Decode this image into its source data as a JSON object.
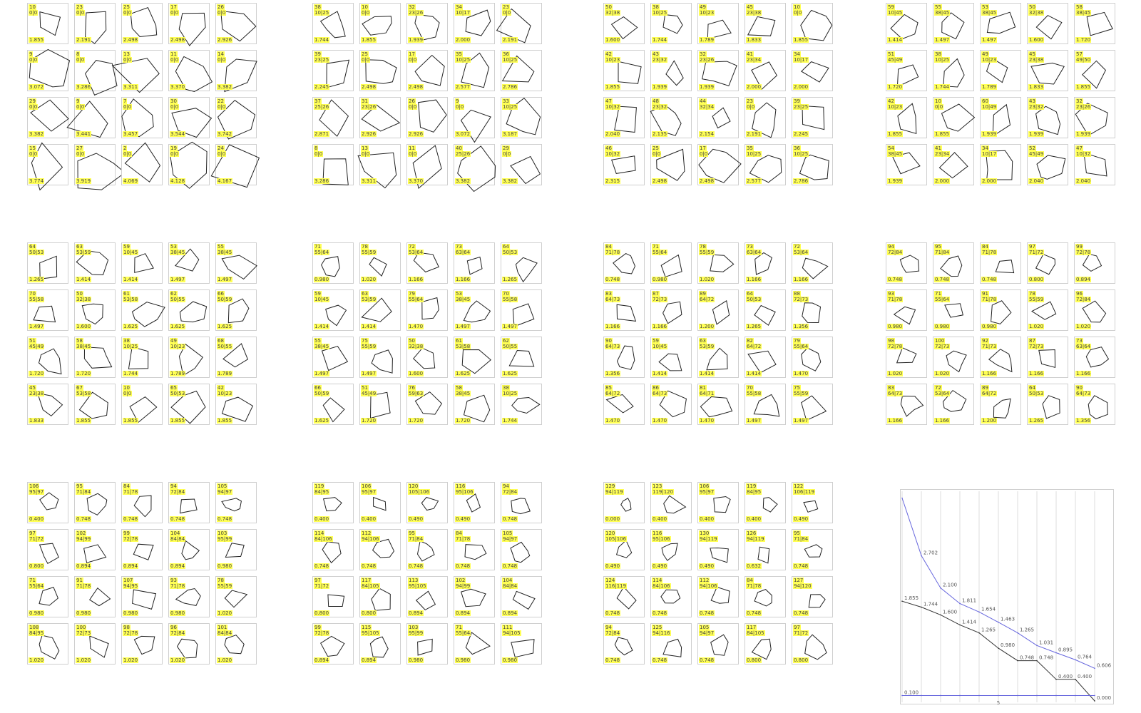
{
  "colors": {
    "label_bg": "#ffff55",
    "cell_border": "#cfcfcf",
    "shape_stroke": "#222222",
    "series_blue": "#6666dd",
    "series_black": "#333333",
    "grid": "#dddddd"
  },
  "groups": [
    {
      "cells": [
        [
          "10",
          "0|0",
          "1.855"
        ],
        [
          "23",
          "0|0",
          "2.191"
        ],
        [
          "25",
          "0|0",
          "2.498"
        ],
        [
          "17",
          "0|0",
          "2.498"
        ],
        [
          "26",
          "0|0",
          "2.926"
        ],
        [
          "9",
          "0|0",
          "3.072"
        ],
        [
          "8",
          "0|0",
          "3.286"
        ],
        [
          "13",
          "0|0",
          "3.311"
        ],
        [
          "11",
          "0|0",
          "3.370"
        ],
        [
          "14",
          "0|0",
          "3.382"
        ],
        [
          "29",
          "0|0",
          "3.382"
        ],
        [
          "9",
          "0|0",
          "3.441"
        ],
        [
          "7",
          "0|0",
          "3.457"
        ],
        [
          "30",
          "0|0",
          "3.544"
        ],
        [
          "22",
          "0|0",
          "3.742"
        ],
        [
          "15",
          "0|0",
          "3.774"
        ],
        [
          "27",
          "0|0",
          "3.919"
        ],
        [
          "2",
          "0|0",
          "4.069"
        ],
        [
          "19",
          "0|0",
          "4.128"
        ],
        [
          "24",
          "0|0",
          "4.167"
        ]
      ]
    },
    {
      "cells": [
        [
          "38",
          "10|25",
          "1.744"
        ],
        [
          "10",
          "0|0",
          "1.855"
        ],
        [
          "32",
          "23|26",
          "1.939"
        ],
        [
          "34",
          "10|17",
          "2.000"
        ],
        [
          "23",
          "0|0",
          "2.191"
        ],
        [
          "39",
          "23|25",
          "2.245"
        ],
        [
          "25",
          "0|0",
          "2.498"
        ],
        [
          "17",
          "0|0",
          "2.498"
        ],
        [
          "35",
          "10|25",
          "2.577"
        ],
        [
          "36",
          "10|25",
          "2.786"
        ],
        [
          "37",
          "25|26",
          "2.871"
        ],
        [
          "31",
          "23|26",
          "2.926"
        ],
        [
          "26",
          "0|0",
          "2.926"
        ],
        [
          "9",
          "0|0",
          "3.072"
        ],
        [
          "33",
          "10|25",
          "3.187"
        ],
        [
          "8",
          "0|0",
          "3.286"
        ],
        [
          "13",
          "0|0",
          "3.311"
        ],
        [
          "11",
          "0|0",
          "3.370"
        ],
        [
          "40",
          "25|26",
          "3.382"
        ],
        [
          "29",
          "0|0",
          "3.382"
        ]
      ]
    },
    {
      "cells": [
        [
          "50",
          "32|38",
          "1.600"
        ],
        [
          "38",
          "10|25",
          "1.744"
        ],
        [
          "49",
          "10|23",
          "1.789"
        ],
        [
          "45",
          "23|38",
          "1.833"
        ],
        [
          "10",
          "0|0",
          "1.855"
        ],
        [
          "42",
          "10|23",
          "1.855"
        ],
        [
          "43",
          "23|32",
          "1.939"
        ],
        [
          "32",
          "23|26",
          "1.939"
        ],
        [
          "41",
          "23|34",
          "2.000"
        ],
        [
          "34",
          "10|17",
          "2.000"
        ],
        [
          "47",
          "10|32",
          "2.040"
        ],
        [
          "48",
          "23|32",
          "2.135"
        ],
        [
          "44",
          "32|34",
          "2.154"
        ],
        [
          "23",
          "0|0",
          "2.191"
        ],
        [
          "39",
          "23|25",
          "2.245"
        ],
        [
          "46",
          "10|32",
          "2.315"
        ],
        [
          "25",
          "0|0",
          "2.498"
        ],
        [
          "17",
          "0|0",
          "2.498"
        ],
        [
          "35",
          "10|25",
          "2.577"
        ],
        [
          "36",
          "10|25",
          "2.786"
        ]
      ]
    },
    {
      "cells": [
        [
          "59",
          "10|45",
          "1.414"
        ],
        [
          "55",
          "38|45",
          "1.497"
        ],
        [
          "53",
          "38|45",
          "1.497"
        ],
        [
          "50",
          "32|38",
          "1.600"
        ],
        [
          "58",
          "38|45",
          "1.720"
        ],
        [
          "51",
          "45|49",
          "1.720"
        ],
        [
          "38",
          "10|25",
          "1.744"
        ],
        [
          "49",
          "10|23",
          "1.789"
        ],
        [
          "45",
          "23|38",
          "1.833"
        ],
        [
          "57",
          "49|50",
          "1.855"
        ],
        [
          "42",
          "10|23",
          "1.855"
        ],
        [
          "10",
          "0|0",
          "1.855"
        ],
        [
          "60",
          "10|49",
          "1.939"
        ],
        [
          "43",
          "23|32",
          "1.939"
        ],
        [
          "32",
          "23|26",
          "1.939"
        ],
        [
          "54",
          "38|45",
          "1.939"
        ],
        [
          "41",
          "23|34",
          "2.000"
        ],
        [
          "34",
          "10|17",
          "2.000"
        ],
        [
          "52",
          "45|49",
          "2.040"
        ],
        [
          "47",
          "10|32",
          "2.040"
        ]
      ]
    },
    {
      "cells": [
        [
          "64",
          "50|53",
          "1.265"
        ],
        [
          "63",
          "53|59",
          "1.414"
        ],
        [
          "59",
          "10|45",
          "1.414"
        ],
        [
          "53",
          "38|45",
          "1.497"
        ],
        [
          "55",
          "38|45",
          "1.497"
        ],
        [
          "70",
          "55|58",
          "1.497"
        ],
        [
          "50",
          "32|38",
          "1.600"
        ],
        [
          "61",
          "53|58",
          "1.625"
        ],
        [
          "62",
          "50|55",
          "1.625"
        ],
        [
          "66",
          "50|59",
          "1.625"
        ],
        [
          "51",
          "45|49",
          "1.720"
        ],
        [
          "58",
          "38|45",
          "1.720"
        ],
        [
          "38",
          "10|25",
          "1.744"
        ],
        [
          "49",
          "10|23",
          "1.789"
        ],
        [
          "68",
          "50|55",
          "1.789"
        ],
        [
          "45",
          "23|38",
          "1.833"
        ],
        [
          "67",
          "53|58",
          "1.855"
        ],
        [
          "10",
          "0|0",
          "1.855"
        ],
        [
          "65",
          "50|53",
          "1.855"
        ],
        [
          "42",
          "10|23",
          "1.855"
        ]
      ]
    },
    {
      "cells": [
        [
          "71",
          "55|64",
          "0.980"
        ],
        [
          "78",
          "55|59",
          "1.020"
        ],
        [
          "72",
          "53|64",
          "1.166"
        ],
        [
          "73",
          "63|64",
          "1.166"
        ],
        [
          "64",
          "50|53",
          "1.265"
        ],
        [
          "59",
          "10|45",
          "1.414"
        ],
        [
          "63",
          "53|59",
          "1.414"
        ],
        [
          "79",
          "55|64",
          "1.470"
        ],
        [
          "53",
          "38|45",
          "1.497"
        ],
        [
          "70",
          "55|58",
          "1.497"
        ],
        [
          "55",
          "38|45",
          "1.497"
        ],
        [
          "75",
          "55|59",
          "1.497"
        ],
        [
          "50",
          "32|38",
          "1.600"
        ],
        [
          "61",
          "53|58",
          "1.625"
        ],
        [
          "62",
          "50|55",
          "1.625"
        ],
        [
          "66",
          "50|59",
          "1.625"
        ],
        [
          "51",
          "45|49",
          "1.720"
        ],
        [
          "76",
          "59|63",
          "1.720"
        ],
        [
          "58",
          "38|45",
          "1.720"
        ],
        [
          "38",
          "10|25",
          "1.744"
        ]
      ]
    },
    {
      "cells": [
        [
          "84",
          "71|78",
          "0.748"
        ],
        [
          "71",
          "55|64",
          "0.980"
        ],
        [
          "78",
          "55|59",
          "1.020"
        ],
        [
          "73",
          "63|64",
          "1.166"
        ],
        [
          "72",
          "53|64",
          "1.166"
        ],
        [
          "83",
          "64|73",
          "1.166"
        ],
        [
          "87",
          "72|73",
          "1.166"
        ],
        [
          "89",
          "64|72",
          "1.200"
        ],
        [
          "64",
          "50|53",
          "1.265"
        ],
        [
          "88",
          "72|73",
          "1.356"
        ],
        [
          "90",
          "64|73",
          "1.356"
        ],
        [
          "59",
          "10|45",
          "1.414"
        ],
        [
          "63",
          "53|59",
          "1.414"
        ],
        [
          "82",
          "64|72",
          "1.414"
        ],
        [
          "79",
          "55|64",
          "1.470"
        ],
        [
          "85",
          "64|72",
          "1.470"
        ],
        [
          "86",
          "64|73",
          "1.470"
        ],
        [
          "81",
          "64|71",
          "1.470"
        ],
        [
          "70",
          "55|58",
          "1.497"
        ],
        [
          "75",
          "55|59",
          "1.497"
        ]
      ]
    },
    {
      "cells": [
        [
          "94",
          "72|84",
          "0.748"
        ],
        [
          "95",
          "71|84",
          "0.748"
        ],
        [
          "84",
          "71|78",
          "0.748"
        ],
        [
          "97",
          "71|72",
          "0.800"
        ],
        [
          "99",
          "72|78",
          "0.894"
        ],
        [
          "93",
          "71|78",
          "0.980"
        ],
        [
          "71",
          "55|64",
          "0.980"
        ],
        [
          "91",
          "71|78",
          "0.980"
        ],
        [
          "78",
          "55|59",
          "1.020"
        ],
        [
          "96",
          "72|84",
          "1.020"
        ],
        [
          "98",
          "72|78",
          "1.020"
        ],
        [
          "100",
          "72|73",
          "1.020"
        ],
        [
          "92",
          "71|73",
          "1.166"
        ],
        [
          "87",
          "72|73",
          "1.166"
        ],
        [
          "73",
          "63|64",
          "1.166"
        ],
        [
          "83",
          "64|73",
          "1.166"
        ],
        [
          "72",
          "53|64",
          "1.166"
        ],
        [
          "89",
          "64|72",
          "1.200"
        ],
        [
          "64",
          "50|53",
          "1.265"
        ],
        [
          "90",
          "64|73",
          "1.356"
        ]
      ]
    },
    {
      "cells": [
        [
          "106",
          "95|97",
          "0.400"
        ],
        [
          "95",
          "71|84",
          "0.748"
        ],
        [
          "84",
          "71|78",
          "0.748"
        ],
        [
          "94",
          "72|84",
          "0.748"
        ],
        [
          "105",
          "94|97",
          "0.748"
        ],
        [
          "97",
          "71|72",
          "0.800"
        ],
        [
          "102",
          "94|99",
          "0.894"
        ],
        [
          "99",
          "72|78",
          "0.894"
        ],
        [
          "104",
          "84|84",
          "0.894"
        ],
        [
          "103",
          "95|99",
          "0.980"
        ],
        [
          "71",
          "55|64",
          "0.980"
        ],
        [
          "91",
          "71|78",
          "0.980"
        ],
        [
          "107",
          "94|95",
          "0.980"
        ],
        [
          "93",
          "71|78",
          "0.980"
        ],
        [
          "78",
          "55|59",
          "1.020"
        ],
        [
          "108",
          "84|95",
          "1.020"
        ],
        [
          "100",
          "72|73",
          "1.020"
        ],
        [
          "98",
          "72|78",
          "1.020"
        ],
        [
          "96",
          "72|84",
          "1.020"
        ],
        [
          "101",
          "84|84",
          "1.020"
        ]
      ]
    },
    {
      "cells": [
        [
          "119",
          "84|95",
          "0.400"
        ],
        [
          "106",
          "95|97",
          "0.400"
        ],
        [
          "120",
          "105|106",
          "0.490"
        ],
        [
          "116",
          "95|106",
          "0.490"
        ],
        [
          "94",
          "72|84",
          "0.748"
        ],
        [
          "114",
          "84|106",
          "0.748"
        ],
        [
          "112",
          "94|106",
          "0.748"
        ],
        [
          "95",
          "71|84",
          "0.748"
        ],
        [
          "84",
          "71|78",
          "0.748"
        ],
        [
          "105",
          "94|97",
          "0.748"
        ],
        [
          "97",
          "71|72",
          "0.800"
        ],
        [
          "117",
          "84|105",
          "0.800"
        ],
        [
          "113",
          "95|105",
          "0.894"
        ],
        [
          "102",
          "94|99",
          "0.894"
        ],
        [
          "104",
          "84|84",
          "0.894"
        ],
        [
          "99",
          "72|78",
          "0.894"
        ],
        [
          "115",
          "95|105",
          "0.894"
        ],
        [
          "103",
          "95|99",
          "0.980"
        ],
        [
          "71",
          "55|64",
          "0.980"
        ],
        [
          "111",
          "94|105",
          "0.980"
        ]
      ]
    },
    {
      "cells": [
        [
          "129",
          "94|119",
          "0.000"
        ],
        [
          "123",
          "119|120",
          "0.400"
        ],
        [
          "106",
          "95|97",
          "0.400"
        ],
        [
          "119",
          "84|95",
          "0.400"
        ],
        [
          "122",
          "106|119",
          "0.490"
        ],
        [
          "120",
          "105|106",
          "0.490"
        ],
        [
          "116",
          "95|106",
          "0.490"
        ],
        [
          "130",
          "94|119",
          "0.490"
        ],
        [
          "126",
          "94|119",
          "0.632"
        ],
        [
          "95",
          "71|84",
          "0.748"
        ],
        [
          "124",
          "116|119",
          "0.748"
        ],
        [
          "114",
          "84|106",
          "0.748"
        ],
        [
          "112",
          "94|106",
          "0.748"
        ],
        [
          "84",
          "71|78",
          "0.748"
        ],
        [
          "127",
          "94|120",
          "0.748"
        ],
        [
          "94",
          "72|84",
          "0.748"
        ],
        [
          "125",
          "94|116",
          "0.748"
        ],
        [
          "105",
          "94|97",
          "0.748"
        ],
        [
          "117",
          "84|105",
          "0.800"
        ],
        [
          "97",
          "71|72",
          "0.800"
        ]
      ]
    }
  ],
  "chart_data": {
    "type": "line",
    "title": "",
    "xlabel": "",
    "ylabel": "",
    "x_ticks": [
      "5"
    ],
    "series": [
      {
        "values": [
          3.774,
          2.702,
          2.1,
          1.811,
          1.654,
          1.463,
          1.265,
          1.031,
          0.895,
          0.764,
          0.606
        ],
        "labels": [
          "",
          "2.702",
          "2.100",
          "1.811",
          "1.654",
          "1.463",
          "1.265",
          "1.031",
          "0.895",
          "0.764",
          "0.606"
        ]
      },
      {
        "values": [
          1.855,
          1.744,
          1.6,
          1.414,
          1.265,
          0.98,
          0.748,
          0.748,
          0.4,
          0.4,
          0.0
        ],
        "labels": [
          "1.855",
          "1.744",
          "1.600",
          "1.414",
          "1.265",
          "0.980",
          "0.748",
          "0.748",
          "0.400",
          "0.400",
          "0.000"
        ]
      },
      {
        "values": [
          0.1,
          0.1,
          0.1,
          0.1,
          0.1,
          0.1,
          0.1,
          0.1,
          0.1,
          0.1,
          0.1
        ],
        "labels": [
          "0.100",
          "",
          "",
          "",
          "",
          "",
          "",
          "",
          "",
          "",
          ""
        ]
      }
    ],
    "x": [
      0,
      1,
      2,
      3,
      4,
      5,
      6,
      7,
      8,
      9,
      10
    ],
    "ylim": [
      0,
      3.9
    ],
    "grid": true
  }
}
